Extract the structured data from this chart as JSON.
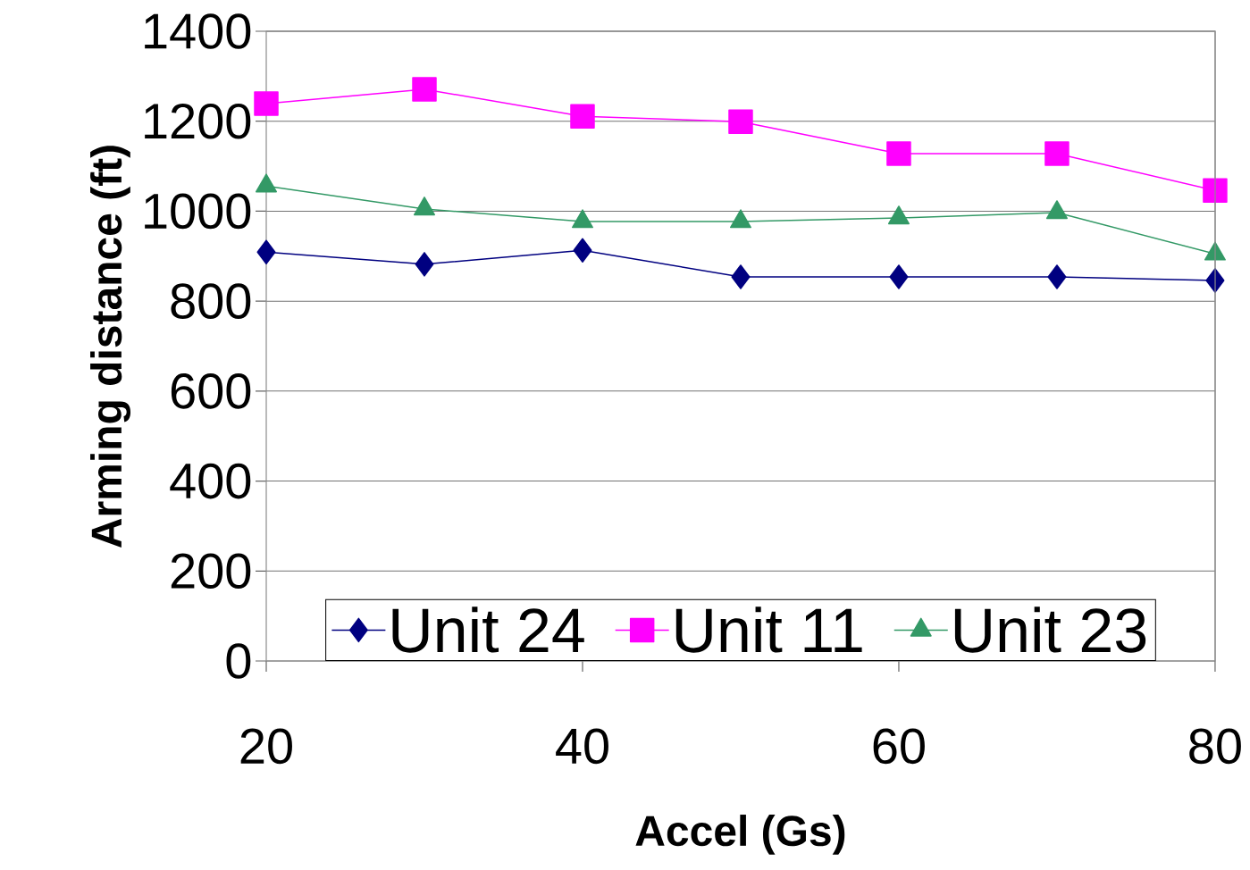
{
  "chart_data": {
    "type": "line",
    "xlabel": "Accel (Gs)",
    "ylabel": "Arming distance (ft)",
    "x": [
      20,
      30,
      40,
      50,
      60,
      70,
      80
    ],
    "series": [
      {
        "name": "Unit 24",
        "color": "#000080",
        "marker": "diamond",
        "values": [
          909,
          882,
          913,
          854,
          854,
          854,
          846
        ]
      },
      {
        "name": "Unit 11",
        "color": "#ff00ff",
        "marker": "square",
        "values": [
          1239,
          1271,
          1211,
          1199,
          1128,
          1128,
          1046
        ]
      },
      {
        "name": "Unit 23",
        "color": "#339966",
        "marker": "triangle",
        "values": [
          1056,
          1005,
          977,
          977,
          985,
          997,
          905
        ]
      }
    ],
    "xlim": [
      20,
      80
    ],
    "xticks": [
      20,
      40,
      60,
      80
    ],
    "ylim": [
      0,
      1400
    ],
    "yticks": [
      0,
      200,
      400,
      600,
      800,
      1000,
      1200,
      1400
    ],
    "grid": "y",
    "legend": "bottom"
  }
}
